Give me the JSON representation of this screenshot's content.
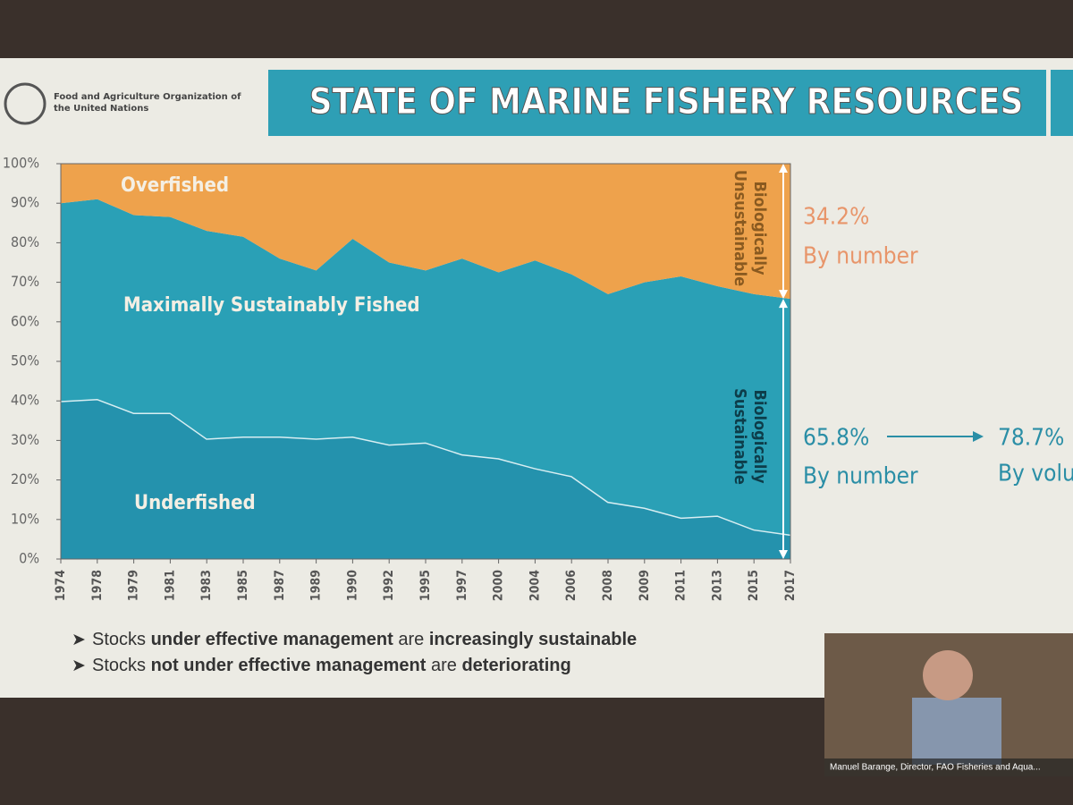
{
  "header": {
    "organization": "Food and Agriculture Organization of the United Nations",
    "title": "STATE OF MARINE FISHERY RESOURCES"
  },
  "chart_data": {
    "type": "area",
    "stacked": true,
    "categories": [
      "1974",
      "1978",
      "1979",
      "1981",
      "1983",
      "1985",
      "1987",
      "1989",
      "1990",
      "1992",
      "1995",
      "1997",
      "2000",
      "2004",
      "2006",
      "2008",
      "2009",
      "2011",
      "2013",
      "2015",
      "2017"
    ],
    "series": [
      {
        "name": "Underfished",
        "color": "#2492ad",
        "values": [
          40,
          40.5,
          37,
          37,
          30.5,
          31,
          31,
          30.5,
          31,
          29,
          29.5,
          26.5,
          25.5,
          23,
          21,
          14.5,
          13,
          10.5,
          11,
          7.5,
          6.2
        ]
      },
      {
        "name": "Maximally Sustainably Fished",
        "color": "#2aa0b6",
        "values": [
          50,
          50.5,
          50,
          49.5,
          52.5,
          50.5,
          45,
          42.5,
          50,
          46,
          43.5,
          49.5,
          47,
          52.5,
          51,
          52.5,
          57,
          61,
          58,
          59.5,
          59.6
        ]
      },
      {
        "name": "Overfished",
        "color": "#eea24c",
        "values": [
          10,
          9,
          13,
          13.5,
          17,
          18.5,
          24,
          27,
          19,
          25,
          27,
          24,
          27.5,
          24.5,
          28,
          33,
          30,
          28.5,
          31,
          33,
          34.2
        ]
      }
    ],
    "ylim": [
      0,
      100
    ],
    "yticks": [
      {
        "value": 0,
        "label": "0%"
      },
      {
        "value": 10,
        "label": "10%"
      },
      {
        "value": 20,
        "label": "20%"
      },
      {
        "value": 30,
        "label": "30%"
      },
      {
        "value": 40,
        "label": "40%"
      },
      {
        "value": 50,
        "label": "50%"
      },
      {
        "value": 60,
        "label": "60%"
      },
      {
        "value": 70,
        "label": "70%"
      },
      {
        "value": 80,
        "label": "80%"
      },
      {
        "value": 90,
        "label": "90%"
      },
      {
        "value": 100,
        "label": "100%"
      }
    ],
    "annotations": {
      "unsustainable": "Biologically Unsustainable",
      "sustainable": "Biologically Sustainable",
      "overfished_share": "34.2%",
      "overfished_basis": "By number",
      "sustainable_share": "65.8%",
      "sustainable_basis": "By number",
      "volume_share": "78.7%",
      "volume_basis": "By volume"
    }
  },
  "bullets": [
    [
      "Stocks ",
      "under effective management",
      " are ",
      "increasingly sustainable"
    ],
    [
      "Stocks ",
      "not under effective management",
      " are ",
      "deteriorating"
    ]
  ],
  "video_caption": "Manuel Barange, Director, FAO Fisheries and Aqua..."
}
